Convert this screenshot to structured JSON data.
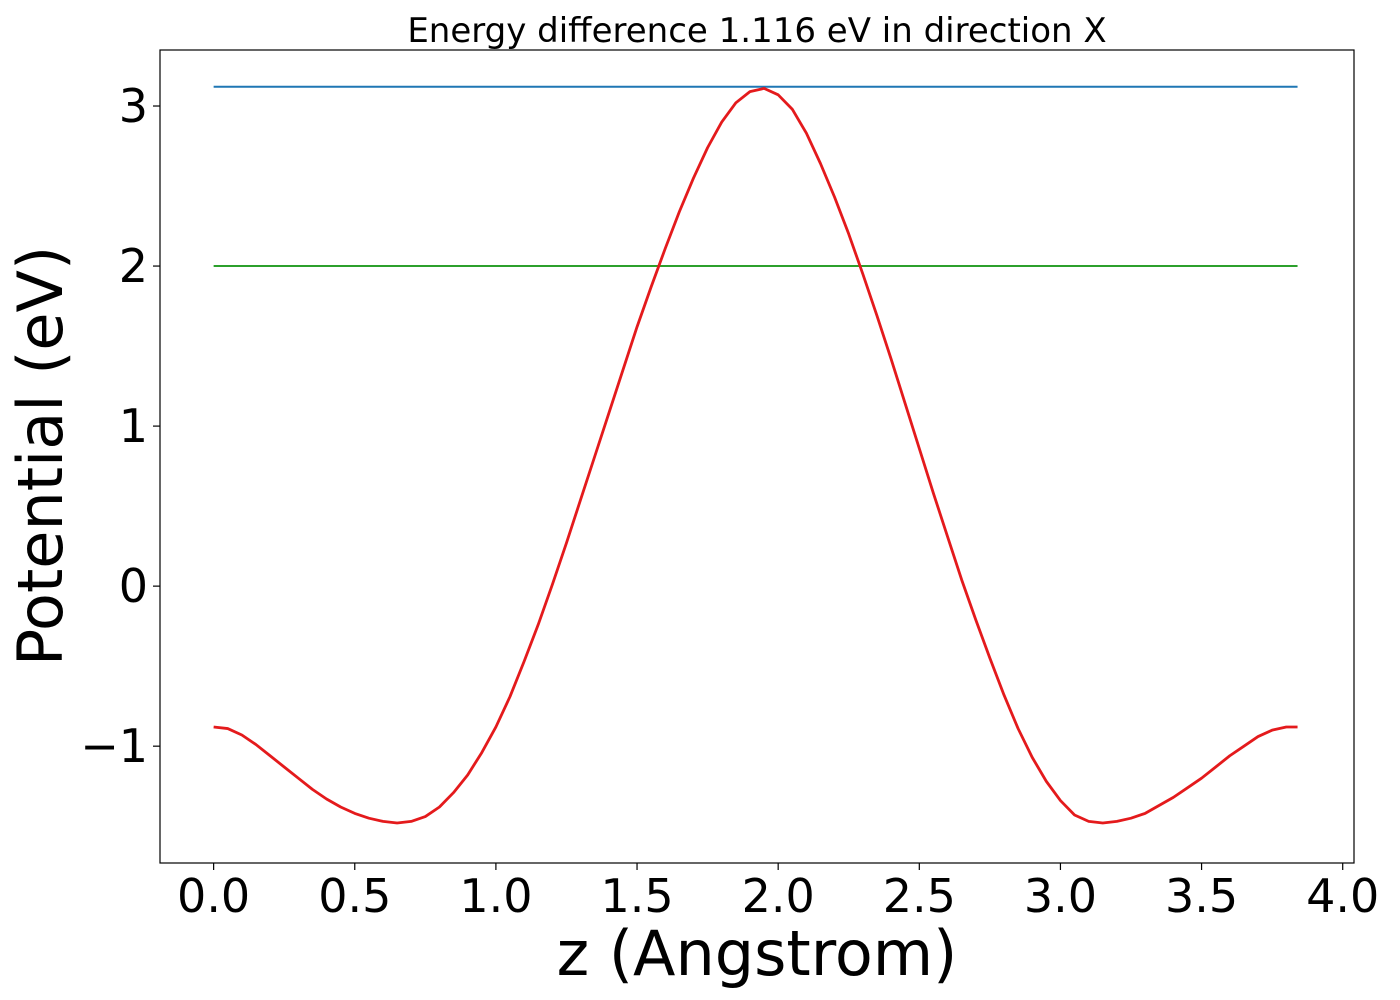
{
  "chart_data": {
    "type": "line",
    "title": "Energy difference 1.116 eV in direction X",
    "xlabel": "z (Angstrom)",
    "ylabel": "Potential (eV)",
    "xlim": [
      -0.19,
      4.04
    ],
    "ylim": [
      -1.73,
      3.35
    ],
    "xticks": [
      0.0,
      0.5,
      1.0,
      1.5,
      2.0,
      2.5,
      3.0,
      3.5,
      4.0
    ],
    "xtick_labels": [
      "0.0",
      "0.5",
      "1.0",
      "1.5",
      "2.0",
      "2.5",
      "3.0",
      "3.5",
      "4.0"
    ],
    "yticks": [
      -1,
      0,
      1,
      2,
      3
    ],
    "ytick_labels": [
      "−1",
      "0",
      "1",
      "2",
      "3"
    ],
    "grid": false,
    "series": [
      {
        "color": "#1f77b4",
        "x": [
          0.0,
          3.84
        ],
        "y": [
          3.12,
          3.12
        ]
      },
      {
        "color": "#2ca02c",
        "x": [
          0.0,
          3.84
        ],
        "y": [
          2.0,
          2.0
        ]
      },
      {
        "color": "#e41a1c",
        "x": [
          0.0,
          0.05,
          0.1,
          0.15,
          0.2,
          0.25,
          0.3,
          0.35,
          0.4,
          0.45,
          0.5,
          0.55,
          0.6,
          0.65,
          0.7,
          0.75,
          0.8,
          0.85,
          0.9,
          0.95,
          1.0,
          1.05,
          1.1,
          1.15,
          1.2,
          1.25,
          1.3,
          1.35,
          1.4,
          1.45,
          1.5,
          1.55,
          1.6,
          1.65,
          1.7,
          1.75,
          1.8,
          1.85,
          1.9,
          1.95,
          2.0,
          2.05,
          2.1,
          2.15,
          2.2,
          2.25,
          2.3,
          2.35,
          2.4,
          2.45,
          2.5,
          2.55,
          2.6,
          2.65,
          2.7,
          2.75,
          2.8,
          2.85,
          2.9,
          2.95,
          3.0,
          3.05,
          3.1,
          3.15,
          3.2,
          3.25,
          3.3,
          3.35,
          3.4,
          3.45,
          3.5,
          3.55,
          3.6,
          3.65,
          3.7,
          3.75,
          3.8,
          3.84
        ],
        "y": [
          -0.88,
          -0.89,
          -0.93,
          -0.99,
          -1.06,
          -1.13,
          -1.2,
          -1.27,
          -1.33,
          -1.38,
          -1.42,
          -1.45,
          -1.47,
          -1.48,
          -1.47,
          -1.44,
          -1.38,
          -1.29,
          -1.18,
          -1.04,
          -0.88,
          -0.69,
          -0.47,
          -0.24,
          0.01,
          0.27,
          0.54,
          0.81,
          1.08,
          1.35,
          1.62,
          1.87,
          2.11,
          2.34,
          2.55,
          2.74,
          2.9,
          3.02,
          3.09,
          3.11,
          3.07,
          2.98,
          2.83,
          2.64,
          2.43,
          2.2,
          1.95,
          1.69,
          1.42,
          1.14,
          0.86,
          0.58,
          0.31,
          0.04,
          -0.21,
          -0.45,
          -0.68,
          -0.89,
          -1.07,
          -1.22,
          -1.34,
          -1.43,
          -1.47,
          -1.48,
          -1.47,
          -1.45,
          -1.42,
          -1.37,
          -1.32,
          -1.26,
          -1.2,
          -1.13,
          -1.06,
          -1.0,
          -0.94,
          -0.9,
          -0.88,
          -0.88
        ]
      }
    ]
  }
}
